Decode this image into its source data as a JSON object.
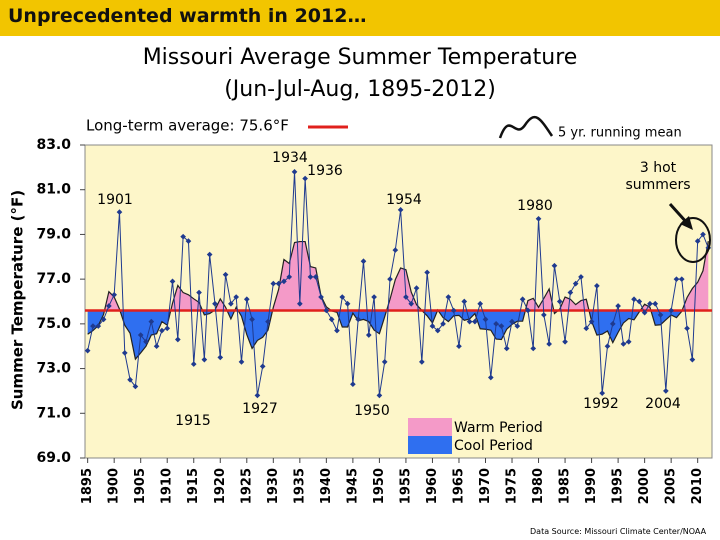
{
  "header": "Unprecedented warmth in 2012…",
  "chart_data": {
    "type": "line",
    "title": "Missouri Average Summer Temperature",
    "subtitle": "(Jun-Jul-Aug, 1895-2012)",
    "y_label": "Summer Temperature (°F)",
    "color": "#1f3a8f",
    "grid": false,
    "x": [
      1895,
      1896,
      1897,
      1898,
      1899,
      1900,
      1901,
      1902,
      1903,
      1904,
      1905,
      1906,
      1907,
      1908,
      1909,
      1910,
      1911,
      1912,
      1913,
      1914,
      1915,
      1916,
      1917,
      1918,
      1919,
      1920,
      1921,
      1922,
      1923,
      1924,
      1925,
      1926,
      1927,
      1928,
      1929,
      1930,
      1931,
      1932,
      1933,
      1934,
      1935,
      1936,
      1937,
      1938,
      1939,
      1940,
      1941,
      1942,
      1943,
      1944,
      1945,
      1946,
      1947,
      1948,
      1949,
      1950,
      1951,
      1952,
      1953,
      1954,
      1955,
      1956,
      1957,
      1958,
      1959,
      1960,
      1961,
      1962,
      1963,
      1964,
      1965,
      1966,
      1967,
      1968,
      1969,
      1970,
      1971,
      1972,
      1973,
      1974,
      1975,
      1976,
      1977,
      1978,
      1979,
      1980,
      1981,
      1982,
      1983,
      1984,
      1985,
      1986,
      1987,
      1988,
      1989,
      1990,
      1991,
      1992,
      1993,
      1994,
      1995,
      1996,
      1997,
      1998,
      1999,
      2000,
      2001,
      2002,
      2003,
      2004,
      2005,
      2006,
      2007,
      2008,
      2009,
      2010,
      2011,
      2012
    ],
    "values": [
      73.8,
      74.9,
      74.9,
      75.2,
      75.8,
      76.3,
      80.0,
      73.7,
      72.5,
      72.2,
      74.5,
      74.2,
      75.1,
      74.0,
      74.7,
      74.8,
      76.9,
      74.3,
      78.9,
      78.7,
      73.2,
      76.4,
      73.4,
      78.1,
      75.9,
      73.5,
      77.2,
      75.9,
      76.2,
      73.3,
      76.1,
      75.2,
      71.8,
      73.1,
      75.1,
      76.8,
      76.8,
      76.9,
      77.1,
      81.8,
      75.9,
      81.5,
      77.1,
      77.1,
      76.2,
      75.6,
      75.2,
      74.7,
      76.2,
      75.9,
      72.3,
      75.2,
      77.8,
      74.5,
      76.2,
      71.8,
      73.3,
      77.0,
      78.3,
      80.1,
      76.2,
      75.9,
      76.6,
      73.3,
      77.3,
      74.9,
      74.7,
      75.0,
      76.2,
      75.6,
      74.0,
      76.0,
      75.1,
      75.1,
      75.9,
      75.2,
      72.6,
      75.0,
      74.9,
      73.9,
      75.1,
      74.9,
      76.1,
      75.6,
      73.9,
      79.7,
      75.4,
      74.1,
      77.6,
      76.0,
      74.2,
      76.4,
      76.8,
      77.1,
      74.8,
      75.1,
      76.7,
      71.9,
      74.0,
      75.0,
      75.8,
      74.1,
      74.2,
      76.1,
      76.0,
      75.5,
      75.9,
      75.9,
      75.4,
      72.0,
      75.6,
      77.0,
      77.0,
      74.8,
      73.4,
      78.7,
      79.0,
      78.4
    ],
    "xlim": [
      1894.5,
      2012.7
    ],
    "xticks": [
      1895,
      1900,
      1905,
      1910,
      1915,
      1920,
      1925,
      1930,
      1935,
      1940,
      1945,
      1950,
      1955,
      1960,
      1965,
      1970,
      1975,
      1980,
      1985,
      1990,
      1995,
      2000,
      2005,
      2010
    ],
    "ylim": [
      69,
      83
    ],
    "yticks": [
      {
        "value": 69,
        "label": "69.0"
      },
      {
        "value": 71,
        "label": "71.0"
      },
      {
        "value": 73,
        "label": "73.0"
      },
      {
        "value": 75,
        "label": "75.0"
      },
      {
        "value": 77,
        "label": "77.0"
      },
      {
        "value": 79,
        "label": "79.0"
      },
      {
        "value": 81,
        "label": "81.0"
      },
      {
        "value": 83,
        "label": "83.0"
      }
    ],
    "average": {
      "value": 75.6,
      "label": "Long-term average: 75.6°F",
      "color": "#e0201c"
    },
    "running_mean_label": "5 yr. running mean",
    "warm": {
      "label": "Warm Period",
      "color": "#f49ac8"
    },
    "cool": {
      "label": "Cool Period",
      "color": "#2f6ff0"
    },
    "annotations": [
      "1901",
      "1934",
      "1936",
      "1954",
      "1980",
      "1915",
      "1927",
      "1950",
      "1992",
      "2004"
    ],
    "hot_note": "3 hot summers",
    "source": "Data Source: Missouri Climate Center/NOAA"
  }
}
